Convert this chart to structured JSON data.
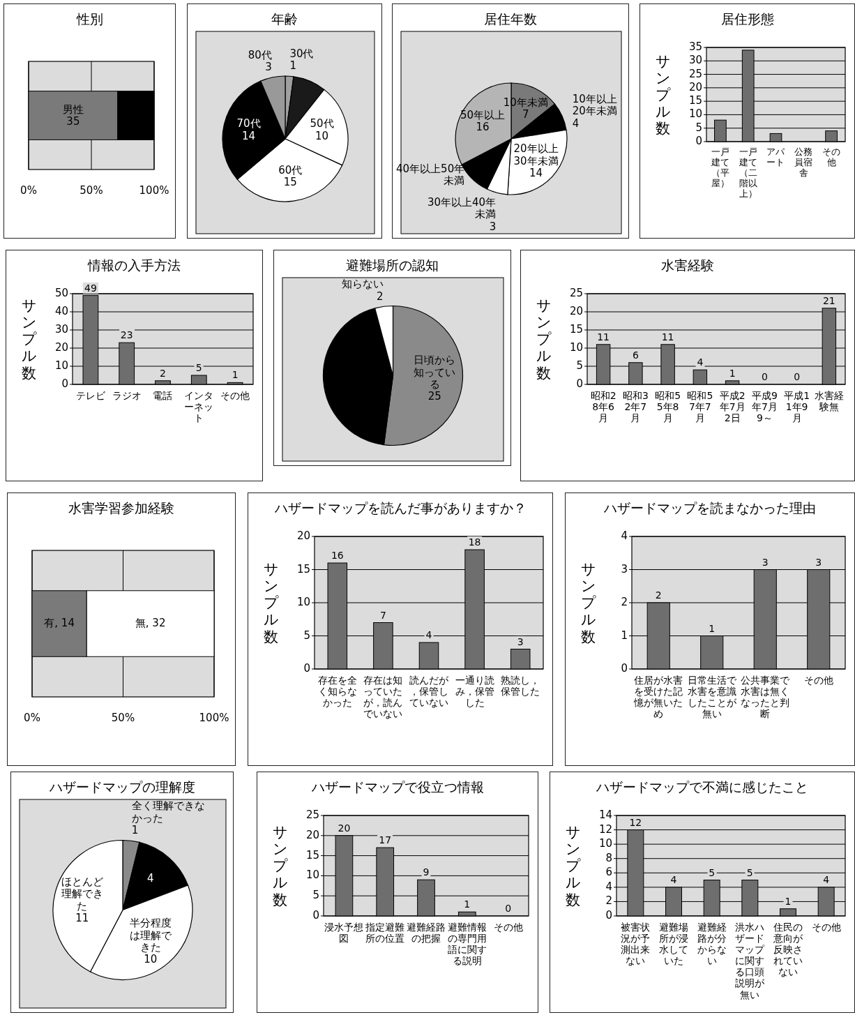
{
  "chart_data": [
    {
      "type": "bar",
      "title": "性別",
      "orientation": "horizontal",
      "stacked": true,
      "categories": [
        null
      ],
      "xlim": [
        0,
        100
      ],
      "xticks": [
        {
          "value": 0,
          "label": "0%"
        },
        {
          "value": 50,
          "label": "50%"
        },
        {
          "value": 100,
          "label": "100%"
        }
      ],
      "grid": "x",
      "annotations": [
        "男性 35"
      ],
      "series": [
        {
          "color": "#7a7a7a",
          "values": [
            71
          ]
        },
        {
          "color": "#000000",
          "values": [
            29
          ]
        }
      ]
    },
    {
      "type": "pie",
      "title": "年齢",
      "categories": [
        "30代",
        null,
        "50代",
        "60代",
        "70代",
        "80代"
      ],
      "values": [
        1,
        4,
        10,
        15,
        14,
        3
      ],
      "value_labels": [
        "1",
        null,
        "10",
        "15",
        "14",
        "3"
      ],
      "colors": [
        "#a0a0a0",
        "#1a1a1a",
        "#ffffff",
        "#ffffff",
        "#000000",
        "#999999"
      ]
    },
    {
      "type": "pie",
      "title": "居住年数",
      "categories": [
        "10年未満",
        "10年以上20年未満",
        "20年以上30年未満",
        "30年以上40年未満",
        "40年以上50年未満",
        "50年以上"
      ],
      "values": [
        7,
        4,
        14,
        3,
        5,
        16
      ],
      "value_labels": [
        "7",
        "4",
        "14",
        "3",
        null,
        "16"
      ],
      "colors": [
        "#7a7a7a",
        "#000000",
        "#ffffff",
        "#ffffff",
        "#000000",
        "#b5b5b5"
      ]
    },
    {
      "type": "bar",
      "title": "居住形態",
      "ylabel": "サンプル数",
      "categories": [
        "一戸建て（平屋）",
        "一戸建て（二階以上）",
        "アパート",
        "公務員宿舎",
        "その他"
      ],
      "values": [
        8,
        34,
        3,
        0,
        4
      ],
      "color": "#6e6e6e",
      "ylim": [
        0,
        35
      ],
      "yticks": [
        0,
        5,
        10,
        15,
        20,
        25,
        30,
        35
      ],
      "grid": "y"
    },
    {
      "type": "bar",
      "title": "情報の入手方法",
      "ylabel": "サンプル数",
      "categories": [
        "テレビ",
        "ラジオ",
        "電話",
        "インターネット",
        "その他"
      ],
      "values": [
        49,
        23,
        2,
        5,
        1
      ],
      "color": "#6e6e6e",
      "ylim": [
        0,
        50
      ],
      "yticks": [
        0,
        10,
        20,
        30,
        40,
        50
      ],
      "grid": "y",
      "data_labels": true
    },
    {
      "type": "pie",
      "title": "避難場所の認知",
      "categories": [
        "日頃から知っている",
        null,
        "知らない"
      ],
      "values": [
        25,
        21,
        2
      ],
      "value_labels": [
        "25",
        null,
        "2"
      ],
      "colors": [
        "#8a8a8a",
        "#000000",
        "#ffffff"
      ]
    },
    {
      "type": "bar",
      "title": "水害経験",
      "ylabel": "サンプル数",
      "categories": [
        "昭和28年6月",
        "昭和32年7月",
        "昭和55年8月",
        "昭和57年7月",
        "平成2年7月2日",
        "平成9年7月9～",
        "平成11年9月",
        "水害経験無"
      ],
      "values": [
        11,
        6,
        11,
        4,
        1,
        0,
        0,
        21
      ],
      "color": "#6e6e6e",
      "ylim": [
        0,
        25
      ],
      "yticks": [
        0,
        5,
        10,
        15,
        20,
        25
      ],
      "grid": "y",
      "data_labels": true
    },
    {
      "type": "bar",
      "title": "水害学習参加経験",
      "orientation": "horizontal",
      "stacked": true,
      "categories": [
        null
      ],
      "xlim": [
        0,
        100
      ],
      "xticks": [
        {
          "value": 0,
          "label": "0%"
        },
        {
          "value": 50,
          "label": "50%"
        },
        {
          "value": 100,
          "label": "100%"
        }
      ],
      "grid": "x",
      "annotations": [
        "有, 14",
        "無, 32"
      ],
      "series": [
        {
          "color": "#7a7a7a",
          "values": [
            30
          ]
        },
        {
          "color": "#ffffff",
          "values": [
            70
          ]
        }
      ]
    },
    {
      "type": "bar",
      "title": "ハザードマップを読んだ事がありますか？",
      "ylabel": "サンプル数",
      "categories": [
        "存在を全く知らなかった",
        "存在は知っていたが，読んでいない",
        "読んだが，保管していない",
        "一通り読み，保管した",
        "熟読し，保管した"
      ],
      "values": [
        16,
        7,
        4,
        18,
        3
      ],
      "color": "#6e6e6e",
      "ylim": [
        0,
        20
      ],
      "yticks": [
        0,
        5,
        10,
        15,
        20
      ],
      "grid": "y",
      "data_labels": true
    },
    {
      "type": "bar",
      "title": "ハザードマップを読まなかった理由",
      "ylabel": "サンプル数",
      "categories": [
        "住居が水害を受けた記憶が無いため",
        "日常生活で水害を意識したことが無い",
        "公共事業で水害は無くなったと判断",
        "その他"
      ],
      "values": [
        2,
        1,
        3,
        3
      ],
      "color": "#6e6e6e",
      "ylim": [
        0,
        4
      ],
      "yticks": [
        0,
        1,
        2,
        3,
        4
      ],
      "grid": "y",
      "data_labels": true
    },
    {
      "type": "pie",
      "title": "ハザードマップの理解度",
      "categories": [
        "全く理解できなかった",
        null,
        "半分程度は理解できた",
        "ほとんど理解できた"
      ],
      "values": [
        1,
        4,
        10,
        11
      ],
      "value_labels": [
        "1",
        "4",
        "10",
        "11"
      ],
      "colors": [
        "#8a8a8a",
        "#000000",
        "#ffffff",
        "#ffffff"
      ]
    },
    {
      "type": "bar",
      "title": "ハザードマップで役立つ情報",
      "ylabel": "サンプル数",
      "categories": [
        "浸水予想図",
        "指定避難所の位置",
        "避難経路の把握",
        "避難情報の専門用語に関する説明",
        "その他"
      ],
      "values": [
        20,
        17,
        9,
        1,
        0
      ],
      "color": "#6e6e6e",
      "ylim": [
        0,
        25
      ],
      "yticks": [
        0,
        5,
        10,
        15,
        20,
        25
      ],
      "grid": "y",
      "data_labels": true
    },
    {
      "type": "bar",
      "title": "ハザードマップで不満に感じたこと",
      "ylabel": "サンプル数",
      "categories": [
        "被害状況が予測出来ない",
        "避難場所が浸水していた",
        "避難経路が分からない",
        "洪水ハザードマップに関する口頭説明が無い",
        "住民の意向が反映されていない",
        "その他"
      ],
      "values": [
        12,
        4,
        5,
        5,
        1,
        4
      ],
      "color": "#6e6e6e",
      "ylim": [
        0,
        14
      ],
      "yticks": [
        0,
        2,
        4,
        6,
        8,
        10,
        12,
        14
      ],
      "grid": "y",
      "data_labels": true
    }
  ]
}
